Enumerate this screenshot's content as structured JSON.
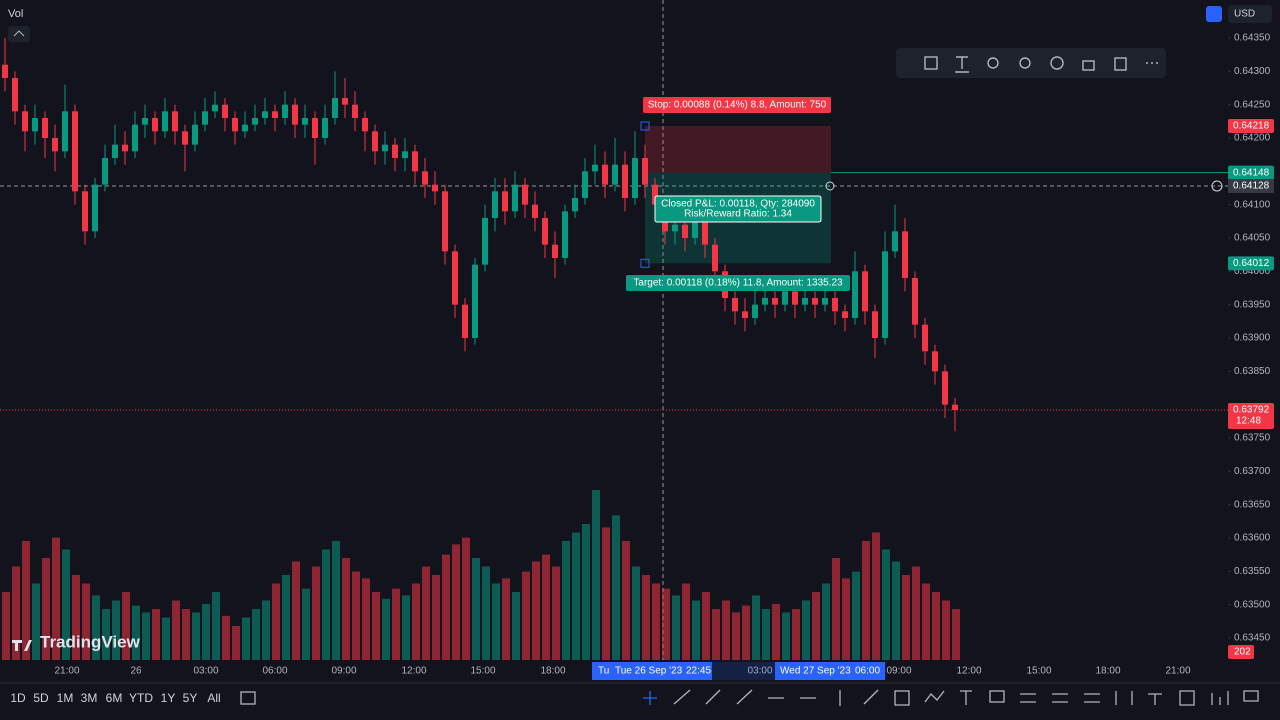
{
  "header": {
    "indicator": "Vol",
    "currency": "USD"
  },
  "logo": "TradingView",
  "chart_data": {
    "type": "candlestick",
    "up_color": "#089981",
    "down_color": "#f23645",
    "ylim": [
      0.63417,
      0.64407
    ],
    "yticks": [
      {
        "value": 0.6435,
        "label": "0.64350"
      },
      {
        "value": 0.643,
        "label": "0.64300"
      },
      {
        "value": 0.6425,
        "label": "0.64250"
      },
      {
        "value": 0.642,
        "label": "0.64200"
      },
      {
        "value": 0.641,
        "label": "0.64100"
      },
      {
        "value": 0.6405,
        "label": "0.64050"
      },
      {
        "value": 0.64,
        "label": "0.64000"
      },
      {
        "value": 0.6395,
        "label": "0.63950"
      },
      {
        "value": 0.639,
        "label": "0.63900"
      },
      {
        "value": 0.6385,
        "label": "0.63850"
      },
      {
        "value": 0.6375,
        "label": "0.63750"
      },
      {
        "value": 0.637,
        "label": "0.63700"
      },
      {
        "value": 0.6365,
        "label": "0.63650"
      },
      {
        "value": 0.636,
        "label": "0.63600"
      },
      {
        "value": 0.6355,
        "label": "0.63550"
      },
      {
        "value": 0.635,
        "label": "0.63500"
      },
      {
        "value": 0.6345,
        "label": "0.63450"
      }
    ],
    "volume_lim": [
      0,
      100
    ],
    "candles": [
      [
        0.6431,
        0.6435,
        0.6427,
        0.6429
      ],
      [
        0.6429,
        0.643,
        0.6422,
        0.6424
      ],
      [
        0.6424,
        0.6425,
        0.6418,
        0.6421
      ],
      [
        0.6421,
        0.6425,
        0.6419,
        0.6423
      ],
      [
        0.6423,
        0.6424,
        0.6417,
        0.642
      ],
      [
        0.642,
        0.6422,
        0.6415,
        0.6418
      ],
      [
        0.6418,
        0.6428,
        0.6417,
        0.6424
      ],
      [
        0.6424,
        0.6425,
        0.641,
        0.6412
      ],
      [
        0.6412,
        0.6413,
        0.6404,
        0.6406
      ],
      [
        0.6406,
        0.6414,
        0.6405,
        0.6413
      ],
      [
        0.6413,
        0.6419,
        0.6412,
        0.6417
      ],
      [
        0.6417,
        0.6422,
        0.6416,
        0.6419
      ],
      [
        0.6419,
        0.6421,
        0.6416,
        0.6418
      ],
      [
        0.6418,
        0.6424,
        0.6417,
        0.6422
      ],
      [
        0.6422,
        0.6425,
        0.642,
        0.6423
      ],
      [
        0.6423,
        0.6424,
        0.6419,
        0.6421
      ],
      [
        0.6421,
        0.6426,
        0.642,
        0.6424
      ],
      [
        0.6424,
        0.6425,
        0.6419,
        0.6421
      ],
      [
        0.6421,
        0.6422,
        0.6415,
        0.6419
      ],
      [
        0.6419,
        0.6424,
        0.6418,
        0.6422
      ],
      [
        0.6422,
        0.6426,
        0.6421,
        0.6424
      ],
      [
        0.6424,
        0.6427,
        0.6423,
        0.6425
      ],
      [
        0.6425,
        0.6426,
        0.6421,
        0.6423
      ],
      [
        0.6423,
        0.6424,
        0.6419,
        0.6421
      ],
      [
        0.6421,
        0.6424,
        0.642,
        0.6422
      ],
      [
        0.6422,
        0.6425,
        0.6421,
        0.6423
      ],
      [
        0.6423,
        0.6426,
        0.6422,
        0.6424
      ],
      [
        0.6424,
        0.6425,
        0.6421,
        0.6423
      ],
      [
        0.6423,
        0.6427,
        0.6422,
        0.6425
      ],
      [
        0.6425,
        0.6426,
        0.642,
        0.6422
      ],
      [
        0.6422,
        0.6425,
        0.642,
        0.6423
      ],
      [
        0.6423,
        0.6424,
        0.6416,
        0.642
      ],
      [
        0.642,
        0.6425,
        0.6419,
        0.6423
      ],
      [
        0.6423,
        0.643,
        0.6422,
        0.6426
      ],
      [
        0.6426,
        0.6429,
        0.6423,
        0.6425
      ],
      [
        0.6425,
        0.6427,
        0.6421,
        0.6423
      ],
      [
        0.6423,
        0.6424,
        0.6418,
        0.6421
      ],
      [
        0.6421,
        0.6422,
        0.6416,
        0.6418
      ],
      [
        0.6418,
        0.6421,
        0.6416,
        0.6419
      ],
      [
        0.6419,
        0.642,
        0.6415,
        0.6417
      ],
      [
        0.6417,
        0.642,
        0.6415,
        0.6418
      ],
      [
        0.6418,
        0.6419,
        0.6413,
        0.6415
      ],
      [
        0.6415,
        0.6417,
        0.6411,
        0.6413
      ],
      [
        0.6413,
        0.6415,
        0.641,
        0.6412
      ],
      [
        0.6412,
        0.6413,
        0.6401,
        0.6403
      ],
      [
        0.6403,
        0.6404,
        0.6393,
        0.6395
      ],
      [
        0.6395,
        0.6396,
        0.6388,
        0.639
      ],
      [
        0.639,
        0.6402,
        0.6389,
        0.6401
      ],
      [
        0.6401,
        0.641,
        0.64,
        0.6408
      ],
      [
        0.6408,
        0.6414,
        0.6406,
        0.6412
      ],
      [
        0.6412,
        0.6414,
        0.6407,
        0.6409
      ],
      [
        0.6409,
        0.6415,
        0.6408,
        0.6413
      ],
      [
        0.6413,
        0.6414,
        0.6408,
        0.641
      ],
      [
        0.641,
        0.6412,
        0.6406,
        0.6408
      ],
      [
        0.6408,
        0.6409,
        0.6402,
        0.6404
      ],
      [
        0.6404,
        0.6406,
        0.6399,
        0.6402
      ],
      [
        0.6402,
        0.641,
        0.6401,
        0.6409
      ],
      [
        0.6409,
        0.6413,
        0.6408,
        0.6411
      ],
      [
        0.6411,
        0.6417,
        0.641,
        0.6415
      ],
      [
        0.6415,
        0.6419,
        0.6413,
        0.6416
      ],
      [
        0.6416,
        0.6418,
        0.6411,
        0.6413
      ],
      [
        0.6413,
        0.642,
        0.6412,
        0.6416
      ],
      [
        0.6416,
        0.6418,
        0.6409,
        0.6411
      ],
      [
        0.6411,
        0.6421,
        0.641,
        0.6417
      ],
      [
        0.6417,
        0.6419,
        0.6411,
        0.6413
      ],
      [
        0.6413,
        0.6414,
        0.6408,
        0.641
      ],
      [
        0.641,
        0.6411,
        0.6404,
        0.6406
      ],
      [
        0.6406,
        0.6409,
        0.6404,
        0.6407
      ],
      [
        0.6407,
        0.6409,
        0.6403,
        0.6405
      ],
      [
        0.6405,
        0.641,
        0.6404,
        0.6408
      ],
      [
        0.6408,
        0.6409,
        0.6402,
        0.6404
      ],
      [
        0.6404,
        0.6405,
        0.6398,
        0.64
      ],
      [
        0.64,
        0.6401,
        0.6394,
        0.6396
      ],
      [
        0.6396,
        0.6397,
        0.6392,
        0.6394
      ],
      [
        0.6394,
        0.6396,
        0.6391,
        0.6393
      ],
      [
        0.6393,
        0.6397,
        0.6392,
        0.6395
      ],
      [
        0.6395,
        0.6398,
        0.6394,
        0.6396
      ],
      [
        0.6396,
        0.6397,
        0.6393,
        0.6395
      ],
      [
        0.6395,
        0.6399,
        0.6394,
        0.6397
      ],
      [
        0.6397,
        0.6398,
        0.6393,
        0.6395
      ],
      [
        0.6395,
        0.6398,
        0.6394,
        0.6396
      ],
      [
        0.6396,
        0.6397,
        0.6393,
        0.6395
      ],
      [
        0.6395,
        0.6398,
        0.6394,
        0.6396
      ],
      [
        0.6396,
        0.6397,
        0.6392,
        0.6394
      ],
      [
        0.6394,
        0.6395,
        0.6391,
        0.6393
      ],
      [
        0.6393,
        0.6403,
        0.6392,
        0.64
      ],
      [
        0.64,
        0.6401,
        0.6392,
        0.6394
      ],
      [
        0.6394,
        0.6395,
        0.6387,
        0.639
      ],
      [
        0.639,
        0.6406,
        0.6389,
        0.6403
      ],
      [
        0.6403,
        0.641,
        0.6402,
        0.6406
      ],
      [
        0.6406,
        0.6408,
        0.6397,
        0.6399
      ],
      [
        0.6399,
        0.64,
        0.639,
        0.6392
      ],
      [
        0.6392,
        0.6393,
        0.6386,
        0.6388
      ],
      [
        0.6388,
        0.6389,
        0.6383,
        0.6385
      ],
      [
        0.6385,
        0.6386,
        0.6378,
        0.638
      ],
      [
        0.638,
        0.6381,
        0.6376,
        0.63792
      ]
    ],
    "volume": [
      40,
      55,
      70,
      45,
      60,
      72,
      65,
      50,
      45,
      38,
      30,
      35,
      40,
      32,
      28,
      30,
      25,
      35,
      30,
      28,
      33,
      40,
      26,
      20,
      25,
      30,
      35,
      45,
      50,
      58,
      42,
      55,
      65,
      70,
      60,
      52,
      48,
      40,
      36,
      42,
      38,
      45,
      55,
      50,
      62,
      68,
      72,
      60,
      55,
      45,
      48,
      40,
      52,
      58,
      62,
      55,
      70,
      75,
      80,
      100,
      78,
      85,
      70,
      55,
      50,
      45,
      42,
      38,
      45,
      35,
      40,
      30,
      35,
      28,
      32,
      38,
      30,
      33,
      28,
      30,
      35,
      40,
      45,
      60,
      48,
      52,
      70,
      75,
      65,
      58,
      50,
      55,
      45,
      40,
      35,
      30
    ],
    "x_labels": [
      "21:00",
      "26",
      "03:00",
      "06:00",
      "09:00",
      "12:00",
      "15:00",
      "18:00",
      "03:00",
      "09:00",
      "12:00",
      "15:00",
      "18:00",
      "21:00"
    ],
    "crosshair": {
      "price": {
        "value": 0.64128,
        "label": "0.64128"
      },
      "cut_label": "Tu",
      "date": "Tue 26 Sep '23",
      "time": "22:45"
    },
    "range_end": {
      "date": "Wed 27 Sep '23",
      "time": "06:00"
    },
    "price_tags": [
      {
        "value": 0.64218,
        "label": "0.64218",
        "color": "#f23645"
      },
      {
        "value": 0.64148,
        "label": "0.64148",
        "color": "#089981"
      },
      {
        "value": 0.64012,
        "label": "0.64012",
        "color": "#089981"
      }
    ],
    "last_price": {
      "value": 0.63792,
      "label": "0.63792",
      "countdown": "12:48",
      "color": "#f23645"
    },
    "volume_tag": "202",
    "position": {
      "stop": 0.64218,
      "entry": 0.64148,
      "target": 0.64012,
      "stop_label": "Stop: 0.00088 (0.14%) 8.8, Amount: 750",
      "pnl_label": "Closed P&L: 0.00118, Qty: 284090",
      "ratio_label": "Risk/Reward Ratio: 1.34",
      "target_label": "Target: 0.00118 (0.18%) 11.8, Amount: 1335.23"
    }
  },
  "range_buttons": [
    "1D",
    "5D",
    "1M",
    "3M",
    "6M",
    "YTD",
    "1Y",
    "5Y",
    "All"
  ]
}
